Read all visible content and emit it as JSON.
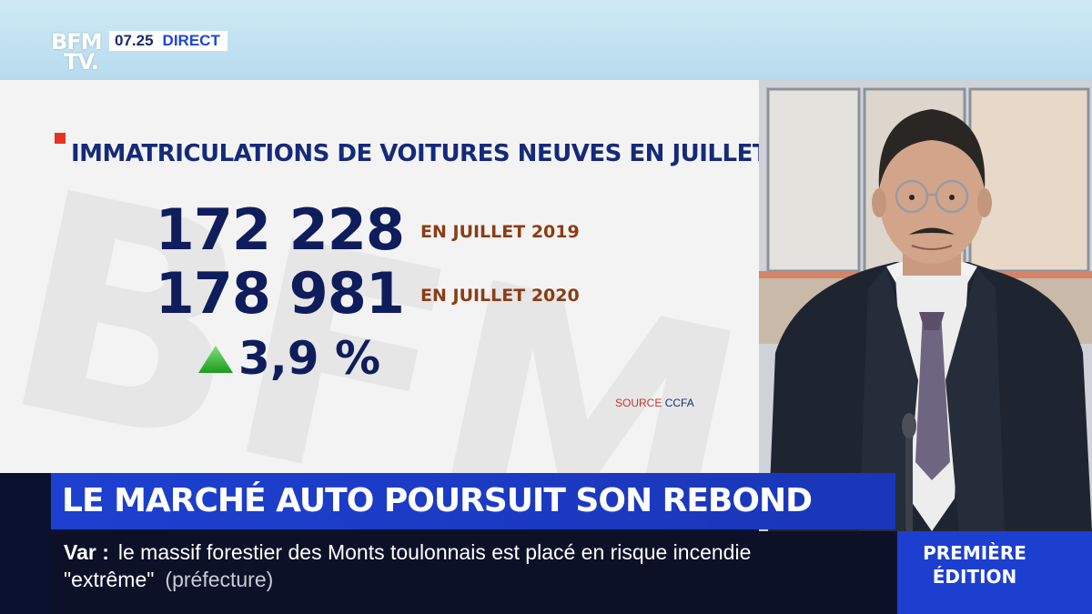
{
  "channel": {
    "logo_line1": "BFM",
    "logo_line2": "TV.",
    "time": "07.25",
    "live_label": "DIRECT"
  },
  "panel": {
    "headline": "IMMATRICULATIONS DE VOITURES NEUVES EN JUILLET",
    "value_2019": "172 228",
    "label_2019": "EN JUILLET 2019",
    "value_2020": "178 981",
    "label_2020": "EN JUILLET 2020",
    "change": "3,9 %",
    "change_direction_icon": "up-triangle-icon",
    "source_label": "SOURCE",
    "source_name": "CCFA",
    "watermark": "BFM"
  },
  "lower_third": {
    "title": "LE MARCHÉ AUTO POURSUIT SON REBOND",
    "ticker_tag": "Var :",
    "ticker_text_1": "le massif forestier des Monts toulonnais est placé en risque incendie",
    "ticker_text_2": "\"extrême\"",
    "ticker_source": "(préfecture)",
    "edition_line1": "PREMIÈRE",
    "edition_line2": "ÉDITION"
  },
  "colors": {
    "brand_blue": "#1d40d0",
    "navy": "#0f1d5c",
    "accent_red": "#e8321f",
    "arrow_green": "#3cc23c",
    "label_brown": "#8b3c16"
  }
}
